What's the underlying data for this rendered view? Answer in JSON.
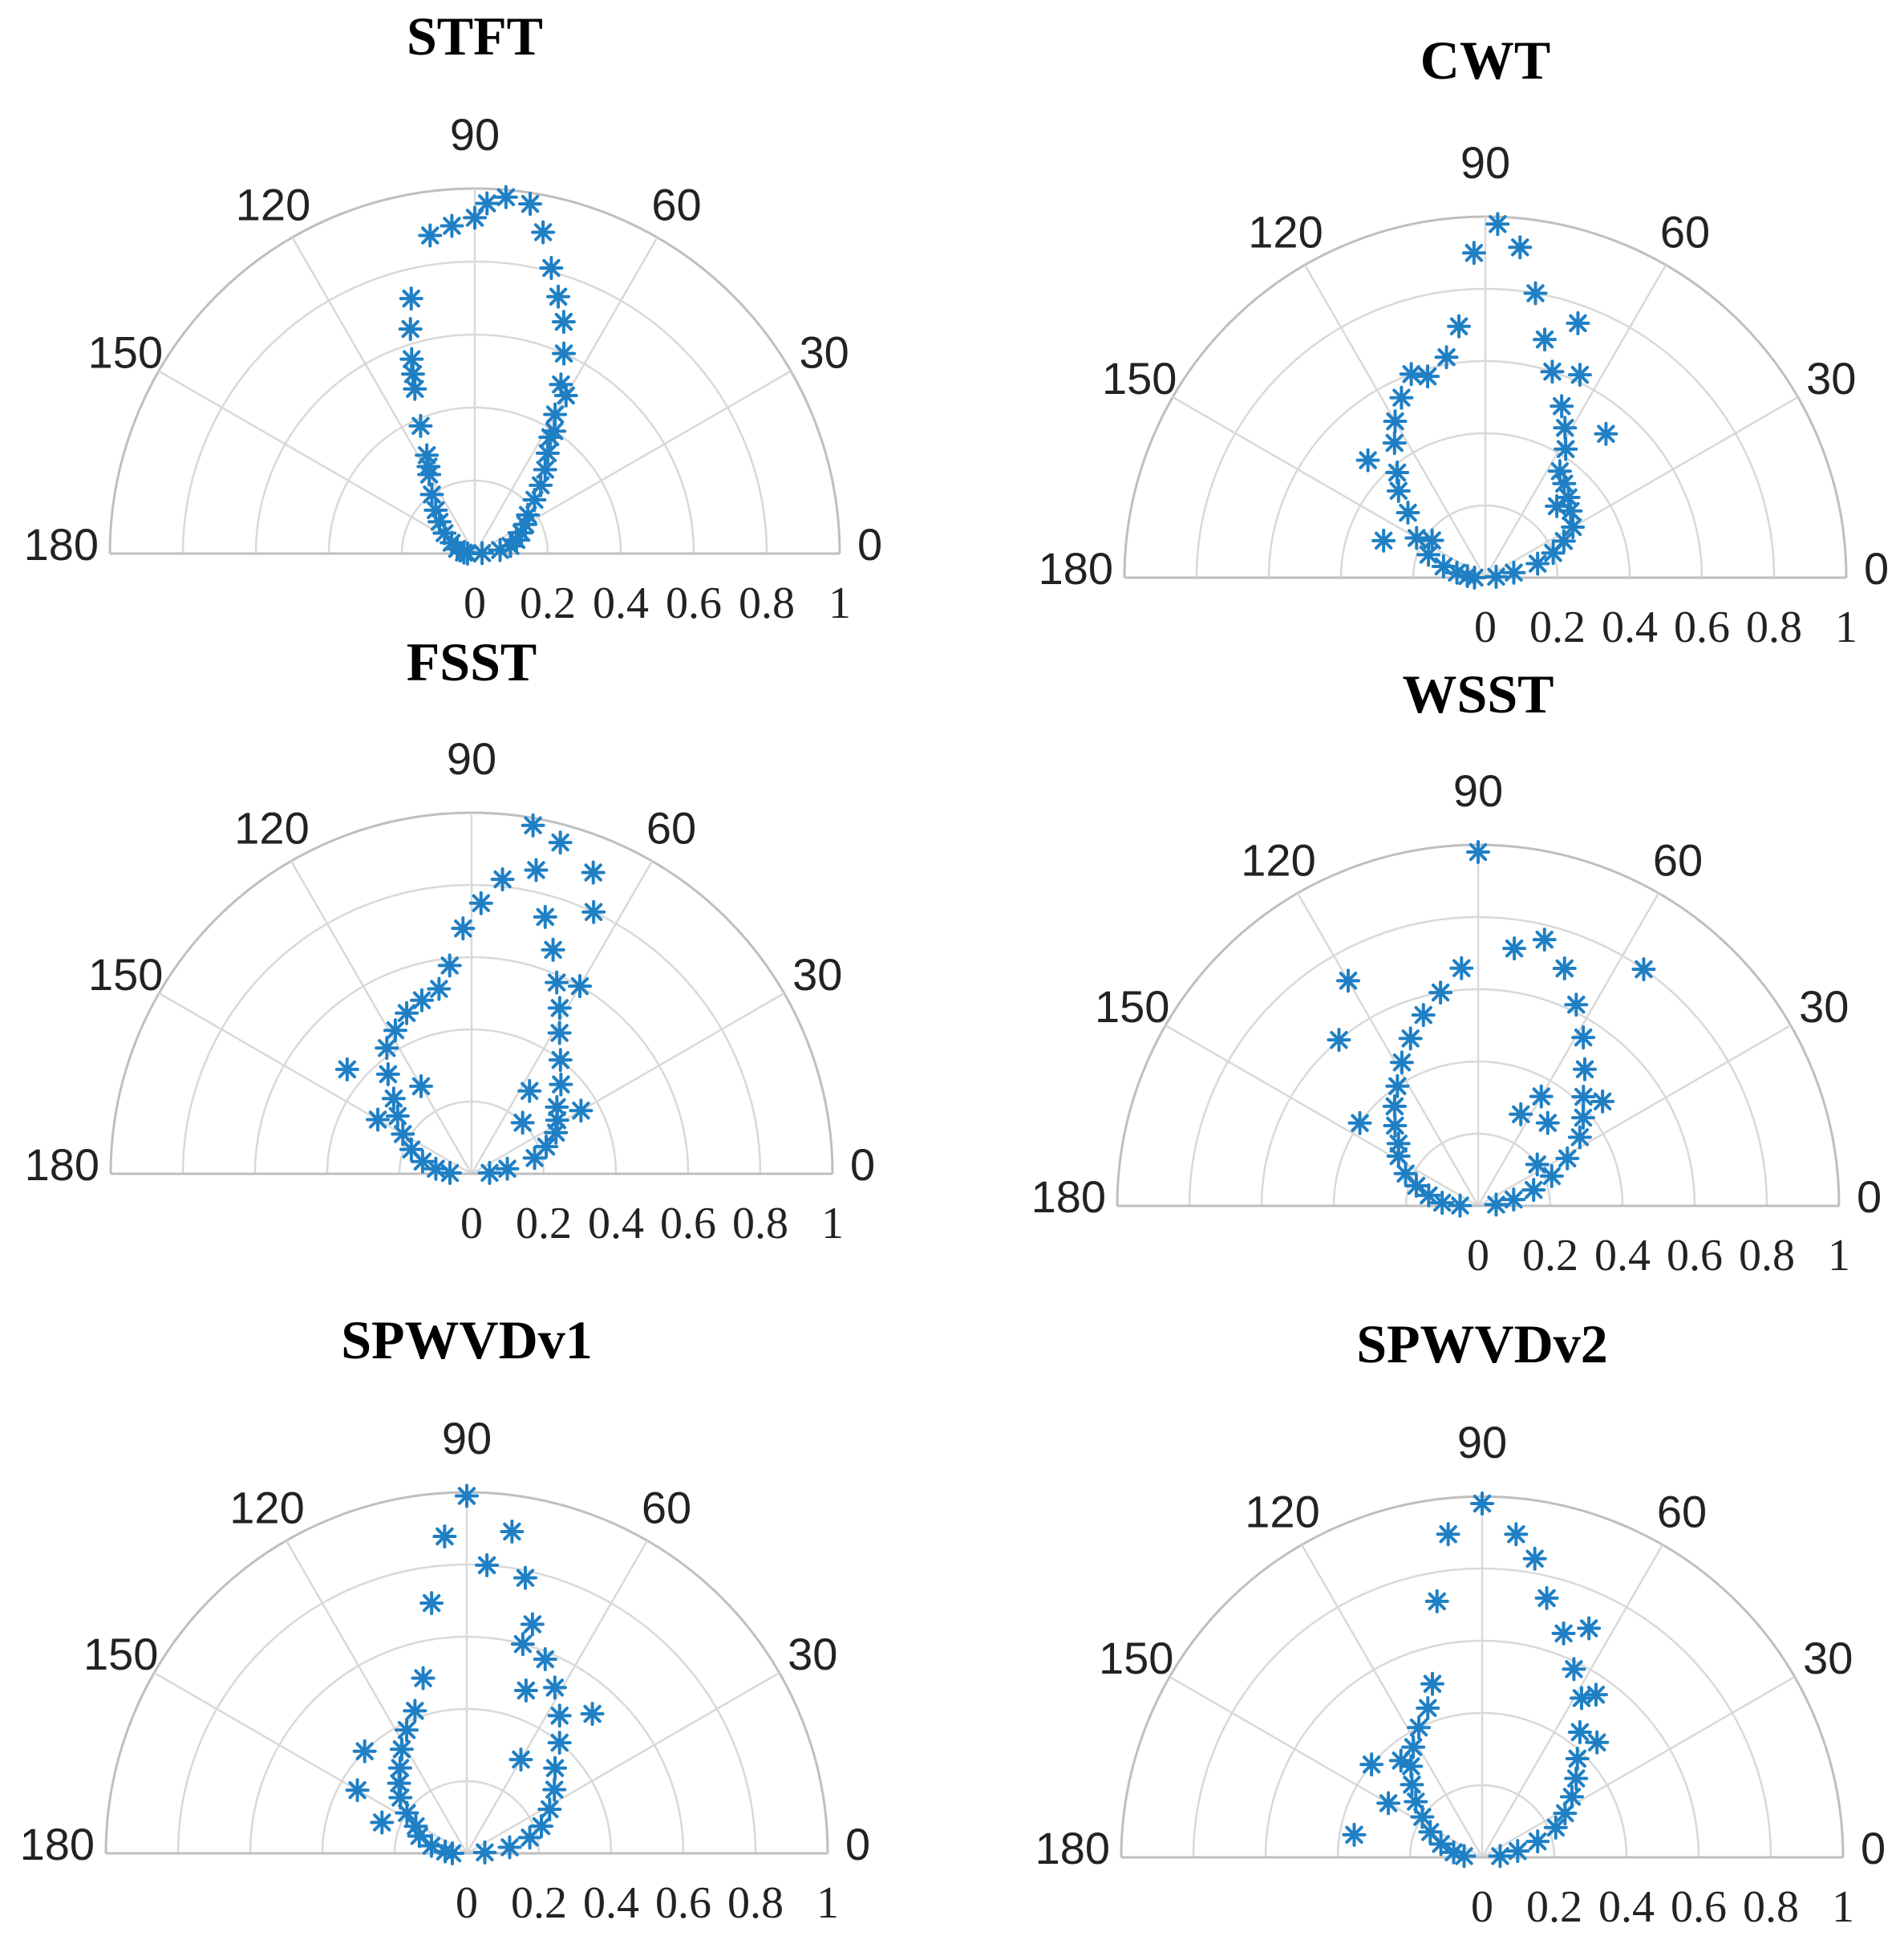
{
  "figure": {
    "marker_color": "#1f7fc4",
    "grid_color": "#d9d9d9",
    "marker": "asterisk"
  },
  "chart_data": [
    {
      "type": "scatter",
      "coordinate_system": "polar",
      "title": "STFT",
      "angular_ticks": [
        "0",
        "30",
        "60",
        "90",
        "120",
        "150",
        "180"
      ],
      "radial_ticks": [
        "0",
        "0.2",
        "0.4",
        "0.6",
        "0.8",
        "1"
      ],
      "theta_range": [
        0,
        180
      ],
      "r_range": [
        0,
        1
      ],
      "points": [
        [
          4,
          0.02
        ],
        [
          8,
          0.07
        ],
        [
          12,
          0.1
        ],
        [
          18,
          0.12
        ],
        [
          24,
          0.14
        ],
        [
          30,
          0.16
        ],
        [
          36,
          0.18
        ],
        [
          42,
          0.22
        ],
        [
          46,
          0.26
        ],
        [
          50,
          0.3
        ],
        [
          54,
          0.34
        ],
        [
          57,
          0.38
        ],
        [
          60,
          0.44
        ],
        [
          63,
          0.52
        ],
        [
          66,
          0.6
        ],
        [
          69,
          0.68
        ],
        [
          72,
          0.74
        ],
        [
          75,
          0.81
        ],
        [
          78,
          0.9
        ],
        [
          81,
          0.97
        ],
        [
          85,
          0.98
        ],
        [
          88,
          0.96
        ],
        [
          94,
          0.9
        ],
        [
          98,
          0.88
        ],
        [
          104,
          0.72
        ],
        [
          106,
          0.64
        ],
        [
          108,
          0.56
        ],
        [
          110,
          0.48
        ],
        [
          113,
          0.38
        ],
        [
          116,
          0.3
        ],
        [
          120,
          0.25
        ],
        [
          126,
          0.2
        ],
        [
          132,
          0.16
        ],
        [
          138,
          0.13
        ],
        [
          146,
          0.1
        ],
        [
          155,
          0.07
        ],
        [
          165,
          0.05
        ],
        [
          175,
          0.03
        ],
        [
          180,
          0.02
        ],
        [
          60,
          0.5
        ],
        [
          57,
          0.4
        ],
        [
          118,
          0.27
        ],
        [
          109,
          0.52
        ],
        [
          90,
          0.92
        ]
      ]
    },
    {
      "type": "scatter",
      "coordinate_system": "polar",
      "title": "CWT",
      "angular_ticks": [
        "0",
        "30",
        "60",
        "90",
        "120",
        "150",
        "180"
      ],
      "radial_ticks": [
        "0",
        "0.2",
        "0.4",
        "0.6",
        "0.8",
        "1"
      ],
      "theta_range": [
        0,
        180
      ],
      "r_range": [
        0,
        1
      ],
      "points": [
        [
          5,
          0.03
        ],
        [
          10,
          0.08
        ],
        [
          15,
          0.15
        ],
        [
          20,
          0.2
        ],
        [
          25,
          0.24
        ],
        [
          30,
          0.28
        ],
        [
          38,
          0.3
        ],
        [
          44,
          0.32
        ],
        [
          50,
          0.34
        ],
        [
          55,
          0.36
        ],
        [
          58,
          0.42
        ],
        [
          62,
          0.47
        ],
        [
          66,
          0.52
        ],
        [
          72,
          0.6
        ],
        [
          76,
          0.68
        ],
        [
          80,
          0.8
        ],
        [
          84,
          0.92
        ],
        [
          88,
          0.98
        ],
        [
          92,
          0.9
        ],
        [
          96,
          0.7
        ],
        [
          100,
          0.62
        ],
        [
          106,
          0.58
        ],
        [
          110,
          0.6
        ],
        [
          115,
          0.55
        ],
        [
          120,
          0.5
        ],
        [
          124,
          0.45
        ],
        [
          130,
          0.38
        ],
        [
          135,
          0.34
        ],
        [
          140,
          0.28
        ],
        [
          150,
          0.22
        ],
        [
          158,
          0.17
        ],
        [
          165,
          0.12
        ],
        [
          170,
          0.08
        ],
        [
          175,
          0.05
        ],
        [
          180,
          0.03
        ],
        [
          50,
          0.52
        ],
        [
          45,
          0.28
        ],
        [
          135,
          0.46
        ],
        [
          160,
          0.3
        ],
        [
          145,
          0.18
        ],
        [
          65,
          0.62
        ],
        [
          70,
          0.75
        ]
      ]
    },
    {
      "type": "scatter",
      "coordinate_system": "polar",
      "title": "FSST",
      "angular_ticks": [
        "0",
        "30",
        "60",
        "90",
        "120",
        "150",
        "180"
      ],
      "radial_ticks": [
        "0",
        "0.2",
        "0.4",
        "0.6",
        "0.8",
        "1"
      ],
      "theta_range": [
        0,
        180
      ],
      "r_range": [
        0,
        1
      ],
      "points": [
        [
          3,
          0.05
        ],
        [
          8,
          0.1
        ],
        [
          14,
          0.18
        ],
        [
          20,
          0.22
        ],
        [
          26,
          0.26
        ],
        [
          32,
          0.28
        ],
        [
          38,
          0.3
        ],
        [
          45,
          0.35
        ],
        [
          52,
          0.4
        ],
        [
          58,
          0.46
        ],
        [
          62,
          0.52
        ],
        [
          66,
          0.58
        ],
        [
          70,
          0.66
        ],
        [
          74,
          0.74
        ],
        [
          78,
          0.86
        ],
        [
          80,
          0.98
        ],
        [
          84,
          0.82
        ],
        [
          88,
          0.75
        ],
        [
          92,
          0.68
        ],
        [
          96,
          0.58
        ],
        [
          100,
          0.52
        ],
        [
          106,
          0.5
        ],
        [
          112,
          0.48
        ],
        [
          118,
          0.45
        ],
        [
          124,
          0.42
        ],
        [
          130,
          0.36
        ],
        [
          136,
          0.3
        ],
        [
          142,
          0.26
        ],
        [
          150,
          0.22
        ],
        [
          158,
          0.18
        ],
        [
          166,
          0.14
        ],
        [
          172,
          0.1
        ],
        [
          178,
          0.06
        ],
        [
          45,
          0.2
        ],
        [
          30,
          0.35
        ],
        [
          60,
          0.6
        ],
        [
          55,
          0.28
        ],
        [
          140,
          0.45
        ],
        [
          150,
          0.3
        ],
        [
          120,
          0.28
        ],
        [
          68,
          0.9
        ],
        [
          65,
          0.8
        ],
        [
          75,
          0.95
        ]
      ]
    },
    {
      "type": "scatter",
      "coordinate_system": "polar",
      "title": "WSST",
      "angular_ticks": [
        "0",
        "30",
        "60",
        "90",
        "120",
        "150",
        "180"
      ],
      "radial_ticks": [
        "0",
        "0.2",
        "0.4",
        "0.6",
        "0.8",
        "1"
      ],
      "theta_range": [
        0,
        180
      ],
      "r_range": [
        0,
        1
      ],
      "points": [
        [
          4,
          0.05
        ],
        [
          10,
          0.1
        ],
        [
          16,
          0.16
        ],
        [
          22,
          0.22
        ],
        [
          28,
          0.28
        ],
        [
          34,
          0.34
        ],
        [
          40,
          0.38
        ],
        [
          46,
          0.42
        ],
        [
          52,
          0.48
        ],
        [
          58,
          0.55
        ],
        [
          64,
          0.62
        ],
        [
          70,
          0.7
        ],
        [
          76,
          0.76
        ],
        [
          82,
          0.72
        ],
        [
          90,
          0.98
        ],
        [
          94,
          0.66
        ],
        [
          100,
          0.6
        ],
        [
          106,
          0.55
        ],
        [
          112,
          0.5
        ],
        [
          118,
          0.45
        ],
        [
          124,
          0.4
        ],
        [
          130,
          0.36
        ],
        [
          136,
          0.32
        ],
        [
          142,
          0.28
        ],
        [
          148,
          0.26
        ],
        [
          156,
          0.22
        ],
        [
          162,
          0.18
        ],
        [
          168,
          0.14
        ],
        [
          175,
          0.1
        ],
        [
          179,
          0.05
        ],
        [
          60,
          0.35
        ],
        [
          55,
          0.8
        ],
        [
          50,
          0.3
        ],
        [
          35,
          0.2
        ],
        [
          40,
          0.45
        ],
        [
          130,
          0.6
        ],
        [
          120,
          0.72
        ],
        [
          145,
          0.4
        ],
        [
          65,
          0.28
        ]
      ]
    },
    {
      "type": "scatter",
      "coordinate_system": "polar",
      "title": "SPWVDv1",
      "angular_ticks": [
        "0",
        "30",
        "60",
        "90",
        "120",
        "150",
        "180"
      ],
      "radial_ticks": [
        "0",
        "0.2",
        "0.4",
        "0.6",
        "0.8",
        "1"
      ],
      "theta_range": [
        0,
        180
      ],
      "r_range": [
        0,
        1
      ],
      "points": [
        [
          3,
          0.05
        ],
        [
          8,
          0.12
        ],
        [
          14,
          0.18
        ],
        [
          20,
          0.22
        ],
        [
          28,
          0.26
        ],
        [
          36,
          0.3
        ],
        [
          44,
          0.34
        ],
        [
          50,
          0.4
        ],
        [
          56,
          0.46
        ],
        [
          62,
          0.52
        ],
        [
          68,
          0.58
        ],
        [
          74,
          0.66
        ],
        [
          78,
          0.78
        ],
        [
          82,
          0.9
        ],
        [
          86,
          0.8
        ],
        [
          90,
          0.99
        ],
        [
          94,
          0.88
        ],
        [
          98,
          0.7
        ],
        [
          104,
          0.5
        ],
        [
          110,
          0.42
        ],
        [
          116,
          0.38
        ],
        [
          122,
          0.34
        ],
        [
          128,
          0.3
        ],
        [
          134,
          0.27
        ],
        [
          140,
          0.24
        ],
        [
          146,
          0.2
        ],
        [
          152,
          0.16
        ],
        [
          160,
          0.14
        ],
        [
          168,
          0.1
        ],
        [
          175,
          0.06
        ],
        [
          180,
          0.04
        ],
        [
          60,
          0.3
        ],
        [
          48,
          0.52
        ],
        [
          70,
          0.48
        ],
        [
          150,
          0.35
        ],
        [
          135,
          0.4
        ],
        [
          160,
          0.25
        ],
        [
          75,
          0.6
        ]
      ]
    },
    {
      "type": "scatter",
      "coordinate_system": "polar",
      "title": "SPWVDv2",
      "angular_ticks": [
        "0",
        "30",
        "60",
        "90",
        "120",
        "150",
        "180"
      ],
      "radial_ticks": [
        "0",
        "0.2",
        "0.4",
        "0.6",
        "0.8",
        "1"
      ],
      "theta_range": [
        0,
        180
      ],
      "r_range": [
        0,
        1
      ],
      "points": [
        [
          4,
          0.05
        ],
        [
          10,
          0.1
        ],
        [
          16,
          0.16
        ],
        [
          22,
          0.22
        ],
        [
          28,
          0.26
        ],
        [
          34,
          0.3
        ],
        [
          40,
          0.34
        ],
        [
          46,
          0.38
        ],
        [
          52,
          0.44
        ],
        [
          58,
          0.52
        ],
        [
          64,
          0.58
        ],
        [
          70,
          0.66
        ],
        [
          76,
          0.74
        ],
        [
          80,
          0.84
        ],
        [
          84,
          0.9
        ],
        [
          90,
          0.98
        ],
        [
          96,
          0.9
        ],
        [
          100,
          0.72
        ],
        [
          106,
          0.5
        ],
        [
          110,
          0.44
        ],
        [
          116,
          0.4
        ],
        [
          122,
          0.36
        ],
        [
          128,
          0.32
        ],
        [
          134,
          0.28
        ],
        [
          140,
          0.24
        ],
        [
          146,
          0.2
        ],
        [
          154,
          0.16
        ],
        [
          162,
          0.12
        ],
        [
          170,
          0.08
        ],
        [
          176,
          0.05
        ],
        [
          170,
          0.36
        ],
        [
          55,
          0.55
        ],
        [
          45,
          0.45
        ],
        [
          65,
          0.7
        ],
        [
          140,
          0.4
        ],
        [
          130,
          0.35
        ],
        [
          150,
          0.3
        ]
      ]
    }
  ]
}
